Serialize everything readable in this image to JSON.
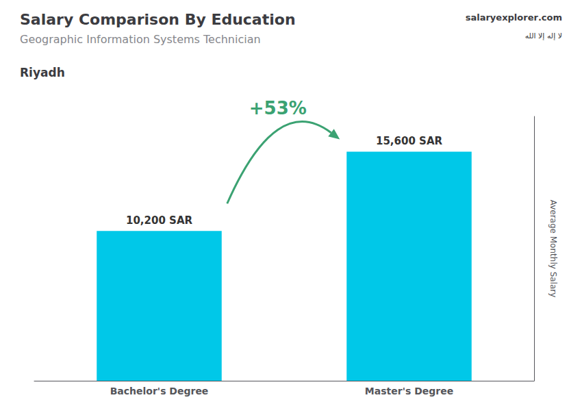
{
  "chart_data": {
    "type": "bar",
    "title": "Salary Comparison By Education",
    "subtitle": "Geographic Information Systems Technician",
    "location": "Riyadh",
    "source": [
      "salary",
      "explorer",
      ".com"
    ],
    "flag_text": "لا إله إلا الله",
    "annotation": "+53%",
    "ylabel": "Average Monthly Salary",
    "categories": [
      "Bachelor's Degree",
      "Master's Degree"
    ],
    "values": [
      10200,
      15600
    ],
    "value_labels": [
      "10,200 SAR",
      "15,600 SAR"
    ],
    "color": "#00c8e8",
    "ylim": [
      0,
      18000
    ],
    "grid": false,
    "data_labels": true,
    "tick_labels": "x"
  }
}
